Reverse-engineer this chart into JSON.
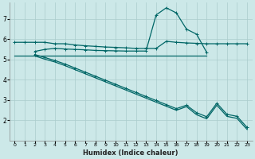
{
  "xlabel": "Humidex (Indice chaleur)",
  "bg_color": "#cce8e8",
  "grid_color": "#aacccc",
  "line_color": "#006666",
  "xlim": [
    -0.5,
    23.5
  ],
  "ylim": [
    1.0,
    7.8
  ],
  "xticks": [
    0,
    1,
    2,
    3,
    4,
    5,
    6,
    7,
    8,
    9,
    10,
    11,
    12,
    13,
    14,
    15,
    16,
    17,
    18,
    19,
    20,
    21,
    22,
    23
  ],
  "yticks": [
    2,
    3,
    4,
    5,
    6,
    7
  ],
  "series1_x": [
    0,
    1,
    2,
    3,
    4,
    5,
    6,
    7,
    8,
    9,
    10,
    11,
    12,
    13,
    14,
    15,
    16,
    17,
    18,
    19,
    20,
    21,
    22,
    23
  ],
  "series1_y": [
    5.85,
    5.85,
    5.85,
    5.85,
    5.78,
    5.78,
    5.72,
    5.68,
    5.65,
    5.62,
    5.6,
    5.58,
    5.55,
    5.55,
    5.55,
    5.9,
    5.85,
    5.82,
    5.8,
    5.78,
    5.78,
    5.78,
    5.78,
    5.78
  ],
  "series2_x": [
    2,
    3,
    4,
    5,
    6,
    7,
    8,
    9,
    10,
    11,
    12,
    13,
    14,
    15,
    16,
    17,
    18,
    19
  ],
  "series2_y": [
    5.4,
    5.5,
    5.55,
    5.52,
    5.5,
    5.48,
    5.45,
    5.44,
    5.43,
    5.42,
    5.42,
    5.42,
    7.2,
    7.55,
    7.3,
    6.5,
    6.25,
    5.35
  ],
  "series3_x": [
    0,
    19
  ],
  "series3_y": [
    5.2,
    5.2
  ],
  "series4_x": [
    2,
    3,
    4,
    5,
    6,
    7,
    8,
    9,
    10,
    11,
    12,
    13,
    14,
    15,
    16,
    17,
    18,
    19,
    20,
    21,
    22,
    23
  ],
  "series4_y": [
    5.25,
    5.1,
    4.95,
    4.78,
    4.58,
    4.38,
    4.18,
    3.98,
    3.78,
    3.58,
    3.38,
    3.18,
    2.98,
    2.78,
    2.58,
    2.75,
    2.38,
    2.18,
    2.85,
    2.3,
    2.2,
    1.65
  ],
  "series5_x": [
    2,
    3,
    4,
    5,
    6,
    7,
    8,
    9,
    10,
    11,
    12,
    13,
    14,
    15,
    16,
    17,
    18,
    19,
    20,
    21,
    22,
    23
  ],
  "series5_y": [
    5.18,
    5.02,
    4.88,
    4.7,
    4.5,
    4.3,
    4.1,
    3.9,
    3.7,
    3.5,
    3.3,
    3.1,
    2.9,
    2.7,
    2.5,
    2.68,
    2.28,
    2.08,
    2.75,
    2.2,
    2.1,
    1.55
  ]
}
